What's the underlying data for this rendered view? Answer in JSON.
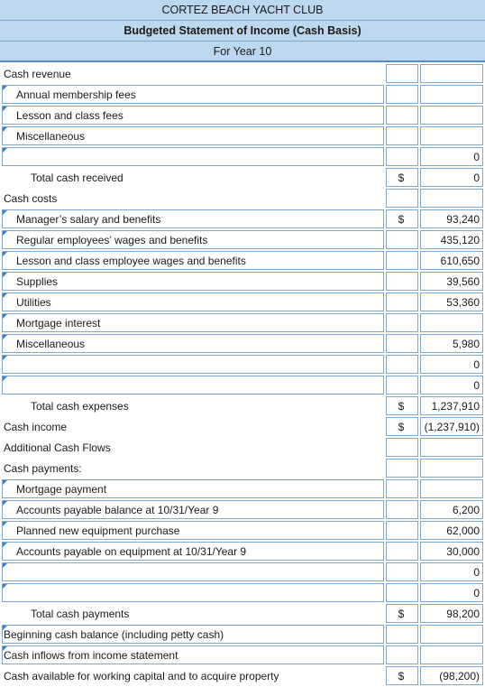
{
  "header": {
    "line1": "CORTEZ BEACH YACHT CLUB",
    "line2": "Budgeted Statement of Income (Cash Basis)",
    "line3": "For Year 10"
  },
  "rows": [
    {
      "label": "Cash revenue",
      "style": "sec",
      "input": false,
      "dollar": "",
      "value": ""
    },
    {
      "label": "Annual membership fees",
      "style": "ind",
      "input": true,
      "dollar": "",
      "value": ""
    },
    {
      "label": "Lesson and class fees",
      "style": "ind",
      "input": true,
      "dollar": "",
      "value": ""
    },
    {
      "label": "Miscellaneous",
      "style": "ind",
      "input": true,
      "dollar": "",
      "value": ""
    },
    {
      "label": "",
      "style": "ind",
      "input": true,
      "dollar": "",
      "value": "0"
    },
    {
      "label": "Total cash received",
      "style": "tot",
      "input": false,
      "dollar": "$",
      "value": "0"
    },
    {
      "label": "Cash costs",
      "style": "sec",
      "input": false,
      "dollar": "",
      "value": ""
    },
    {
      "label": "Manager’s salary and benefits",
      "style": "ind",
      "input": true,
      "dollar": "$",
      "value": "93,240"
    },
    {
      "label": "Regular employees’ wages and benefits",
      "style": "ind",
      "input": true,
      "dollar": "",
      "value": "435,120"
    },
    {
      "label": "Lesson and class employee wages and benefits",
      "style": "ind",
      "input": true,
      "dollar": "",
      "value": "610,650"
    },
    {
      "label": "Supplies",
      "style": "ind",
      "input": true,
      "dollar": "",
      "value": "39,560"
    },
    {
      "label": "Utilities",
      "style": "ind",
      "input": true,
      "dollar": "",
      "value": "53,360"
    },
    {
      "label": "Mortgage interest",
      "style": "ind",
      "input": true,
      "dollar": "",
      "value": ""
    },
    {
      "label": "Miscellaneous",
      "style": "ind",
      "input": true,
      "dollar": "",
      "value": "5,980"
    },
    {
      "label": "",
      "style": "ind",
      "input": true,
      "dollar": "",
      "value": "0"
    },
    {
      "label": "",
      "style": "ind",
      "input": true,
      "dollar": "",
      "value": "0"
    },
    {
      "label": "Total cash expenses",
      "style": "tot",
      "input": false,
      "dollar": "$",
      "value": "1,237,910"
    },
    {
      "label": "Cash income",
      "style": "sec",
      "input": false,
      "dollar": "$",
      "value": "(1,237,910)"
    },
    {
      "label": "Additional Cash Flows",
      "style": "sec",
      "input": false,
      "dollar": "",
      "value": ""
    },
    {
      "label": "Cash payments:",
      "style": "sec",
      "input": false,
      "dollar": "",
      "value": ""
    },
    {
      "label": "Mortgage payment",
      "style": "ind",
      "input": true,
      "dollar": "",
      "value": ""
    },
    {
      "label": "Accounts payable balance at 10/31/Year 9",
      "style": "ind",
      "input": true,
      "dollar": "",
      "value": "6,200"
    },
    {
      "label": "Planned new equipment purchase",
      "style": "ind",
      "input": true,
      "dollar": "",
      "value": "62,000"
    },
    {
      "label": "Accounts payable on equipment at 10/31/Year 9",
      "style": "ind",
      "input": true,
      "dollar": "",
      "value": "30,000"
    },
    {
      "label": "",
      "style": "ind",
      "input": true,
      "dollar": "",
      "value": "0"
    },
    {
      "label": "",
      "style": "ind",
      "input": true,
      "dollar": "",
      "value": "0"
    },
    {
      "label": "Total cash payments",
      "style": "tot",
      "input": false,
      "dollar": "$",
      "value": "98,200"
    },
    {
      "label": "Beginning cash balance (including petty cash)",
      "style": "sec",
      "input": true,
      "dollar": "",
      "value": ""
    },
    {
      "label": "Cash inflows from income statement",
      "style": "sec",
      "input": true,
      "dollar": "",
      "value": ""
    },
    {
      "label": "Cash available for working capital and to acquire property",
      "style": "sec",
      "input": false,
      "dollar": "$",
      "value": "(98,200)"
    }
  ]
}
